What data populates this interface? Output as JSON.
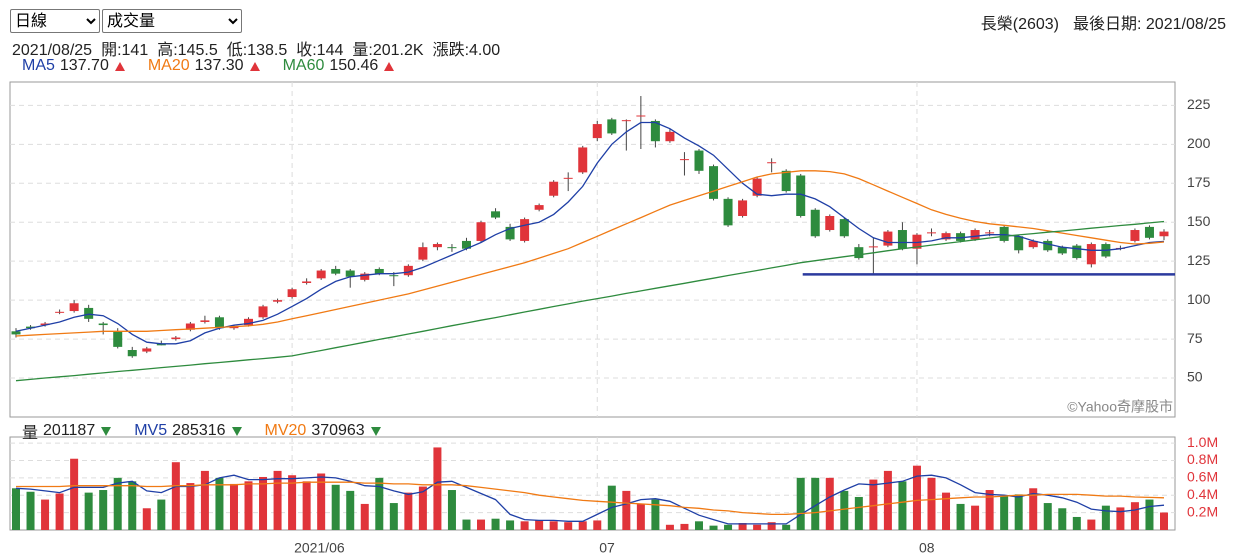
{
  "controls": {
    "period": "日線",
    "indicator": "成交量"
  },
  "stock": "長榮(2603)",
  "last_date": "最後日期: 2021/08/25",
  "quote": [
    "2021/08/25",
    "開:141",
    "高:145.5",
    "低:138.5",
    "收:144",
    "量:201.2K",
    "漲跌:4.00"
  ],
  "chart_data": [
    {
      "type": "candlestick",
      "categories": [
        null,
        null,
        null,
        null,
        null,
        null,
        null,
        null,
        null,
        null,
        null,
        null,
        null,
        null,
        null,
        null,
        null,
        null,
        null,
        "2021/06",
        null,
        null,
        null,
        null,
        null,
        null,
        null,
        null,
        null,
        null,
        null,
        null,
        null,
        null,
        null,
        null,
        null,
        null,
        null,
        null,
        "07",
        null,
        null,
        null,
        null,
        null,
        null,
        null,
        null,
        null,
        null,
        null,
        null,
        null,
        null,
        null,
        null,
        null,
        null,
        null,
        null,
        null,
        "08",
        null,
        null,
        null,
        null,
        null,
        null,
        null,
        null,
        null,
        null,
        null,
        null,
        null,
        null,
        null,
        null,
        null
      ],
      "open": [
        80,
        83,
        84,
        92,
        93,
        95,
        85,
        80,
        68,
        67,
        72,
        75,
        81,
        86,
        89,
        82,
        84,
        89,
        99,
        102,
        111,
        114,
        120,
        119,
        113,
        120,
        116,
        116,
        126,
        134,
        134,
        138,
        138,
        157,
        147,
        138,
        158,
        167,
        178,
        182,
        204,
        216,
        215,
        218,
        215,
        202,
        190,
        196,
        186,
        165,
        154,
        167,
        188,
        183,
        180,
        158,
        145,
        152,
        134,
        134,
        135,
        145,
        133,
        143,
        139,
        143,
        139,
        143,
        147,
        141,
        134,
        138,
        134,
        135,
        123,
        136,
        133,
        138,
        147,
        141
      ],
      "high": [
        82,
        84,
        86,
        94,
        100,
        97,
        86,
        82,
        70,
        70,
        74,
        77,
        86,
        90,
        90,
        84,
        89,
        97,
        101,
        108,
        114,
        120,
        122,
        120,
        118,
        121,
        118,
        123,
        137,
        137,
        136,
        140,
        151,
        159,
        149,
        153,
        162,
        177,
        182,
        199,
        215,
        217,
        216,
        231,
        216,
        210,
        195,
        197,
        187,
        166,
        165,
        179,
        191,
        184,
        181,
        159,
        155,
        153,
        136,
        140,
        145,
        150,
        143,
        146,
        144,
        144,
        146,
        145,
        148,
        142,
        139,
        139,
        135,
        136,
        137,
        137,
        135,
        146,
        148,
        145.5
      ],
      "low": [
        76,
        81,
        83,
        91,
        92,
        86,
        78,
        69,
        63,
        66,
        71,
        74,
        80,
        85,
        81,
        81,
        83,
        88,
        98,
        101,
        110,
        113,
        116,
        108,
        112,
        116,
        109,
        115,
        125,
        132,
        131,
        132,
        137,
        152,
        138,
        137,
        157,
        166,
        170,
        181,
        202,
        206,
        196,
        197,
        198,
        201,
        180,
        181,
        164,
        147,
        153,
        166,
        182,
        169,
        153,
        140,
        144,
        140,
        126,
        117,
        134,
        132,
        123,
        141,
        138,
        137,
        138,
        141,
        137,
        130,
        133,
        131,
        129,
        126,
        121,
        127,
        132,
        137,
        139,
        138.5
      ],
      "close": [
        78,
        82,
        85,
        92.5,
        98,
        88,
        84,
        70,
        64,
        69,
        71,
        76,
        85,
        87,
        82,
        83.5,
        88,
        96,
        100,
        107,
        112,
        119,
        117,
        115,
        117,
        117,
        115.5,
        122,
        134,
        136,
        133.5,
        133,
        150,
        153,
        139,
        152,
        161,
        176,
        178.5,
        198,
        213,
        207,
        215.5,
        218.5,
        202,
        208,
        190.5,
        183,
        165,
        148,
        164,
        178,
        188.5,
        170,
        154,
        141,
        154,
        141,
        127,
        134.5,
        144,
        133,
        142,
        143.5,
        143,
        138,
        145,
        143.5,
        138,
        132,
        138,
        132,
        130,
        127,
        136,
        128,
        133.5,
        145,
        140,
        144
      ],
      "series": [
        {
          "name": "MA5",
          "legend_value": "137.70",
          "trend": "up",
          "color": "#1f3fa6",
          "values": [
            80,
            82,
            84,
            86,
            89,
            91,
            90,
            85,
            78,
            73,
            72,
            72,
            74,
            79,
            82,
            84,
            85,
            87,
            91,
            96,
            101,
            107,
            112,
            115,
            116,
            117,
            117,
            118,
            121,
            125,
            129,
            133,
            137,
            142,
            146,
            148,
            150,
            155,
            163,
            173,
            188,
            200,
            208,
            214,
            214,
            210,
            204,
            199,
            193,
            184,
            175,
            168,
            167,
            168,
            168,
            165,
            160,
            153,
            146,
            140,
            137,
            137,
            137,
            138,
            140,
            140,
            141,
            142,
            142,
            141,
            138,
            136,
            134,
            133,
            132,
            132,
            133,
            135,
            137,
            137.7
          ]
        },
        {
          "name": "MA20",
          "legend_value": "137.30",
          "trend": "up",
          "color": "#f07a14",
          "values": [
            77,
            77.5,
            78,
            78.5,
            79,
            79.5,
            80,
            80,
            80,
            80,
            80.5,
            81,
            81.5,
            82,
            82.5,
            83,
            83.5,
            84.5,
            86,
            88,
            90,
            92,
            94,
            96,
            98,
            100,
            102,
            104,
            106.5,
            109,
            111.5,
            114,
            116.5,
            119,
            121.5,
            124,
            127,
            130,
            133,
            137,
            141,
            145,
            149,
            153,
            157,
            161,
            164,
            167,
            170,
            173,
            176,
            179,
            181,
            182,
            183,
            183,
            182.5,
            181,
            178,
            174,
            170,
            166,
            162,
            158,
            155,
            152.5,
            150.5,
            149,
            148,
            147,
            146,
            144.5,
            143,
            141.5,
            140,
            138.5,
            137,
            136,
            136.5,
            137.3
          ]
        },
        {
          "name": "MA60",
          "legend_value": "150.46",
          "trend": "up",
          "color": "#2e8b3e",
          "values": [
            48.3,
            49.1,
            50,
            50.8,
            51.6,
            52.5,
            53.3,
            54.2,
            55,
            55.8,
            56.7,
            57.5,
            58.3,
            59.2,
            60,
            60.8,
            61.7,
            62.5,
            63.3,
            64.2,
            66,
            67.7,
            69.5,
            71.2,
            73,
            74.8,
            76.5,
            78.3,
            80,
            81.8,
            83.6,
            85.3,
            87.1,
            88.8,
            90.6,
            92.4,
            94.1,
            95.9,
            97.6,
            99.4,
            101,
            102.6,
            104.3,
            105.9,
            107.6,
            109.2,
            110.8,
            112.5,
            114.1,
            115.8,
            117.4,
            119,
            120.7,
            122.3,
            124,
            125.3,
            126.6,
            127.9,
            129.1,
            130.4,
            131.7,
            133,
            134.1,
            135.3,
            136.4,
            137.6,
            138.7,
            139.9,
            141,
            141.9,
            142.7,
            143.6,
            144.4,
            145.3,
            146.2,
            147,
            147.9,
            148.7,
            149.6,
            150.46
          ]
        }
      ],
      "up_color": "#e0343a",
      "down_color": "#2e8b3e",
      "ylim": [
        25,
        240
      ],
      "yticks": [
        50,
        75,
        100,
        125,
        150,
        175,
        200,
        225
      ],
      "tick_label_color": "#444444",
      "grid": true,
      "reference_line": {
        "value": 116.5,
        "color": "#2b3a9e"
      },
      "watermark": "©Yahoo奇摩股市"
    },
    {
      "type": "bar",
      "name": "量",
      "legend_value": "201187",
      "trend": "down",
      "categories": [
        null,
        null,
        null,
        null,
        null,
        null,
        null,
        null,
        null,
        null,
        null,
        null,
        null,
        null,
        null,
        null,
        null,
        null,
        null,
        "2021/06",
        null,
        null,
        null,
        null,
        null,
        null,
        null,
        null,
        null,
        null,
        null,
        null,
        null,
        null,
        null,
        null,
        null,
        null,
        null,
        null,
        "07",
        null,
        null,
        null,
        null,
        null,
        null,
        null,
        null,
        null,
        null,
        null,
        null,
        null,
        null,
        null,
        null,
        null,
        null,
        null,
        null,
        null,
        "08",
        null,
        null,
        null,
        null,
        null,
        null,
        null,
        null,
        null,
        null,
        null,
        null,
        null,
        null,
        null,
        null,
        null
      ],
      "values": [
        480000,
        440000,
        350000,
        420000,
        820000,
        430000,
        460000,
        600000,
        560000,
        250000,
        350000,
        780000,
        540000,
        680000,
        600000,
        530000,
        560000,
        610000,
        680000,
        630000,
        560000,
        650000,
        520000,
        450000,
        300000,
        600000,
        310000,
        430000,
        500000,
        950000,
        460000,
        120000,
        120000,
        130000,
        110000,
        100000,
        110000,
        100000,
        90000,
        100000,
        110000,
        510000,
        450000,
        300000,
        350000,
        60000,
        70000,
        100000,
        50000,
        60000,
        80000,
        60000,
        90000,
        60000,
        600000,
        600000,
        600000,
        450000,
        380000,
        580000,
        680000,
        560000,
        740000,
        600000,
        430000,
        300000,
        280000,
        460000,
        390000,
        410000,
        480000,
        310000,
        250000,
        150000,
        120000,
        280000,
        260000,
        320000,
        350000,
        201187
      ],
      "series": [
        {
          "name": "MV5",
          "legend_value": "285316",
          "trend": "down",
          "color": "#1f3fa6",
          "values": [
            480000,
            470000,
            450000,
            430000,
            490000,
            490000,
            490000,
            540000,
            560000,
            450000,
            430000,
            500000,
            500000,
            520000,
            600000,
            630000,
            580000,
            580000,
            590000,
            590000,
            600000,
            610000,
            600000,
            560000,
            510000,
            500000,
            450000,
            410000,
            440000,
            550000,
            560000,
            490000,
            420000,
            350000,
            180000,
            120000,
            110000,
            110000,
            100000,
            100000,
            180000,
            260000,
            300000,
            350000,
            360000,
            330000,
            250000,
            170000,
            120000,
            70000,
            70000,
            70000,
            70000,
            70000,
            180000,
            280000,
            380000,
            460000,
            530000,
            520000,
            540000,
            560000,
            620000,
            630000,
            600000,
            520000,
            430000,
            410000,
            400000,
            380000,
            420000,
            400000,
            370000,
            320000,
            240000,
            220000,
            210000,
            230000,
            270000,
            285316
          ]
        },
        {
          "name": "MV20",
          "legend_value": "370963",
          "trend": "down",
          "color": "#f07a14",
          "values": [
            500000,
            500000,
            500000,
            500000,
            510000,
            510000,
            510000,
            510000,
            510000,
            500000,
            500000,
            510000,
            510000,
            520000,
            520000,
            520000,
            530000,
            530000,
            540000,
            540000,
            550000,
            550000,
            550000,
            550000,
            540000,
            540000,
            530000,
            530000,
            520000,
            520000,
            520000,
            510000,
            490000,
            470000,
            450000,
            430000,
            400000,
            380000,
            360000,
            340000,
            330000,
            320000,
            310000,
            300000,
            290000,
            280000,
            260000,
            250000,
            230000,
            220000,
            200000,
            190000,
            180000,
            180000,
            190000,
            200000,
            220000,
            240000,
            260000,
            280000,
            300000,
            320000,
            340000,
            350000,
            360000,
            370000,
            380000,
            380000,
            390000,
            400000,
            400000,
            410000,
            410000,
            410000,
            400000,
            390000,
            390000,
            380000,
            375000,
            370963
          ]
        }
      ],
      "ylim": [
        0,
        1070000
      ],
      "yticks": [
        {
          "value": 200000,
          "label": "0.2M"
        },
        {
          "value": 400000,
          "label": "0.4M"
        },
        {
          "value": 600000,
          "label": "0.6M"
        },
        {
          "value": 800000,
          "label": "0.8M"
        },
        {
          "value": 1000000,
          "label": "1.0M"
        }
      ],
      "tick_label_color": "#e0343a",
      "grid": true
    }
  ]
}
